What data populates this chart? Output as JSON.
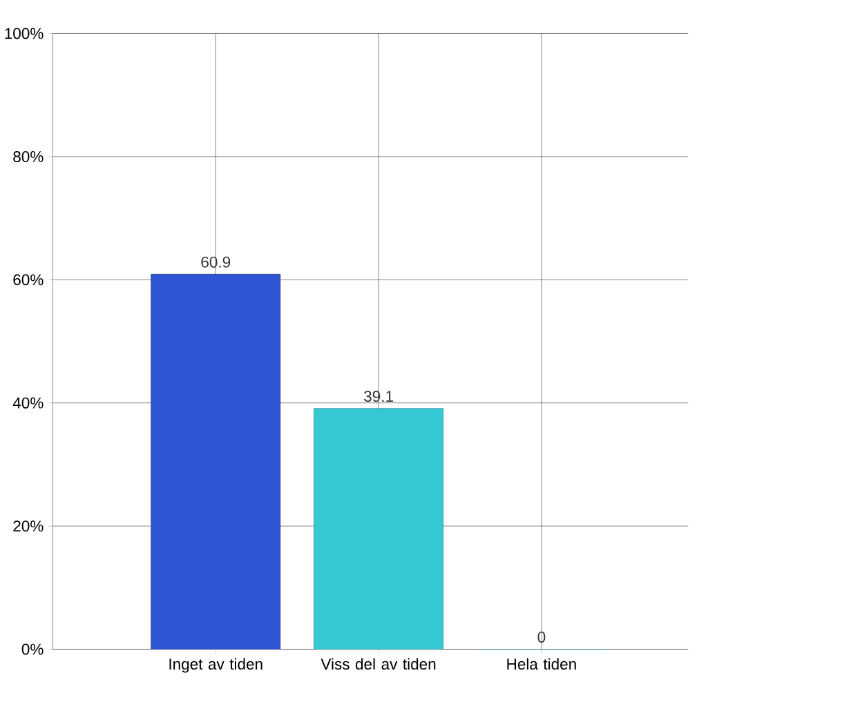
{
  "chart_data": {
    "type": "bar",
    "categories": [
      "Inget av tiden",
      "Viss del av tiden",
      "Hela tiden"
    ],
    "values": [
      60.9,
      39.1,
      0
    ],
    "colors": [
      "#2f55d4",
      "#35c9d3",
      "#35c9d3"
    ],
    "ylim": [
      0,
      100
    ],
    "yticks": [
      {
        "value": 0,
        "label": "0%"
      },
      {
        "value": 20,
        "label": "20%"
      },
      {
        "value": 40,
        "label": "40%"
      },
      {
        "value": 60,
        "label": "60%"
      },
      {
        "value": 80,
        "label": "80%"
      },
      {
        "value": 100,
        "label": "100%"
      }
    ],
    "grid": true,
    "data_labels": true
  }
}
